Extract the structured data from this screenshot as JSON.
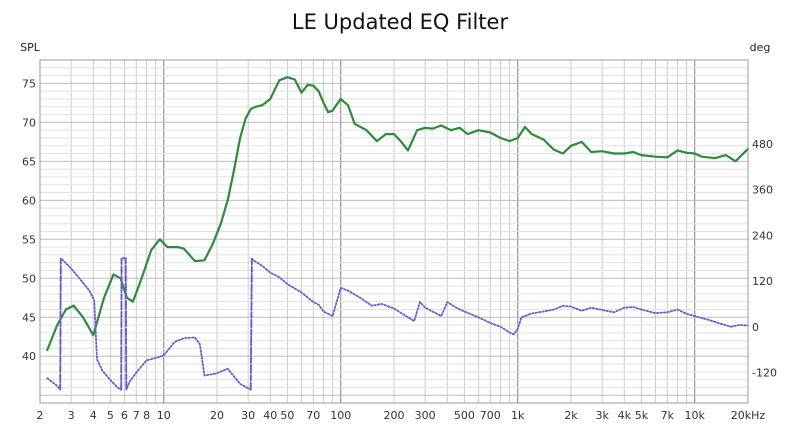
{
  "chart_data": {
    "type": "line",
    "title": "LE Updated EQ Filter",
    "y_left_label": "SPL",
    "y_right_label": "deg",
    "x_scale": "log",
    "xlim": [
      2,
      20000
    ],
    "ylim_left": [
      34,
      78
    ],
    "ylim_right": [
      -200,
      700
    ],
    "grid": true,
    "x_ticks": [
      {
        "v": 2,
        "label": "2"
      },
      {
        "v": 3,
        "label": "3"
      },
      {
        "v": 4,
        "label": "4"
      },
      {
        "v": 5,
        "label": "5"
      },
      {
        "v": 6,
        "label": "6"
      },
      {
        "v": 7,
        "label": "7"
      },
      {
        "v": 8,
        "label": "8"
      },
      {
        "v": 10,
        "label": "10"
      },
      {
        "v": 20,
        "label": "20"
      },
      {
        "v": 30,
        "label": "30"
      },
      {
        "v": 40,
        "label": "40"
      },
      {
        "v": 50,
        "label": "50"
      },
      {
        "v": 70,
        "label": "70"
      },
      {
        "v": 100,
        "label": "100"
      },
      {
        "v": 200,
        "label": "200"
      },
      {
        "v": 300,
        "label": "300"
      },
      {
        "v": 500,
        "label": "500"
      },
      {
        "v": 700,
        "label": "700"
      },
      {
        "v": 1000,
        "label": "1k"
      },
      {
        "v": 2000,
        "label": "2k"
      },
      {
        "v": 3000,
        "label": "3k"
      },
      {
        "v": 4000,
        "label": "4k"
      },
      {
        "v": 5000,
        "label": "5k"
      },
      {
        "v": 7000,
        "label": "7k"
      },
      {
        "v": 10000,
        "label": "10k"
      },
      {
        "v": 20000,
        "label": "20kHz"
      }
    ],
    "y_left_ticks": [
      40,
      45,
      50,
      55,
      60,
      65,
      70,
      75
    ],
    "y_right_ticks": [
      -120,
      0,
      120,
      240,
      360,
      480
    ],
    "series": [
      {
        "axis": "left",
        "color": "#2e8b3a",
        "style": "solid",
        "x": [
          2.2,
          2.5,
          2.8,
          3.1,
          3.5,
          4.0,
          4.6,
          5.2,
          5.7,
          6.2,
          6.7,
          7.5,
          8.5,
          9.5,
          10.5,
          12,
          13,
          15,
          17,
          19,
          21,
          23,
          25,
          27,
          29,
          31,
          33,
          36,
          40,
          45,
          50,
          55,
          60,
          65,
          70,
          75,
          80,
          85,
          90,
          95,
          100,
          110,
          120,
          140,
          160,
          180,
          200,
          220,
          240,
          270,
          300,
          330,
          370,
          420,
          470,
          520,
          600,
          700,
          800,
          900,
          1000,
          1100,
          1200,
          1400,
          1600,
          1800,
          2000,
          2300,
          2600,
          3000,
          3500,
          4000,
          4500,
          5000,
          6000,
          7000,
          8000,
          9000,
          10000,
          11000,
          13000,
          15000,
          17000,
          20000
        ],
        "y": [
          40.8,
          44.0,
          46.0,
          46.5,
          45.0,
          42.7,
          47.5,
          50.5,
          50.0,
          47.5,
          47.0,
          50.0,
          53.6,
          55.0,
          54.0,
          54.0,
          53.8,
          52.2,
          52.3,
          54.5,
          57.0,
          60.0,
          64.0,
          68.0,
          70.5,
          71.7,
          72.0,
          72.2,
          73.0,
          75.4,
          75.8,
          75.5,
          73.8,
          74.8,
          74.7,
          74.0,
          72.5,
          71.3,
          71.5,
          72.3,
          73.0,
          72.2,
          69.8,
          69.0,
          67.6,
          68.5,
          68.5,
          67.5,
          66.4,
          69.0,
          69.3,
          69.2,
          69.6,
          69.0,
          69.3,
          68.5,
          69.0,
          68.7,
          68.0,
          67.6,
          68.0,
          69.4,
          68.5,
          67.8,
          66.5,
          66.0,
          67.0,
          67.5,
          66.2,
          66.3,
          66.0,
          66.0,
          66.2,
          65.8,
          65.6,
          65.5,
          66.4,
          66.1,
          66.0,
          65.6,
          65.4,
          65.8,
          65.0,
          66.6
        ]
      },
      {
        "axis": "right",
        "color": "#6a5acd",
        "style": "dotted",
        "x": [
          2.2,
          2.5,
          2.6,
          2.62,
          2.9,
          3.3,
          3.8,
          4.05,
          4.2,
          4.5,
          5.0,
          5.5,
          5.75,
          5.78,
          6.0,
          6.1,
          6.15,
          6.4,
          7.0,
          8.0,
          9.0,
          10.0,
          11.5,
          13.0,
          15.0,
          16.0,
          17.0,
          20.0,
          23.0,
          27.0,
          31.0,
          31.5,
          32.0,
          36.0,
          40.0,
          45.0,
          50.0,
          60.0,
          70.0,
          75.0,
          80.0,
          90.0,
          100.0,
          110.0,
          130.0,
          150.0,
          170.0,
          200.0,
          230.0,
          260.0,
          280.0,
          300.0,
          330.0,
          370.0,
          400.0,
          450.0,
          500.0,
          600.0,
          700.0,
          800.0,
          900.0,
          950.0,
          1000.0,
          1050.0,
          1200.0,
          1400.0,
          1600.0,
          1800.0,
          2000.0,
          2300.0,
          2600.0,
          3000.0,
          3500.0,
          4000.0,
          4500.0,
          5000.0,
          6000.0,
          7000.0,
          8000.0,
          9000.0,
          10000.0,
          12000.0,
          14000.0,
          16000.0,
          18000.0,
          20000.0
        ],
        "y": [
          -135,
          -155,
          -165,
          180,
          160,
          130,
          95,
          70,
          -85,
          -115,
          -140,
          -160,
          -165,
          180,
          180,
          180,
          -165,
          -145,
          -120,
          -88,
          -82,
          -75,
          -40,
          -30,
          -28,
          -45,
          -128,
          -122,
          -110,
          -150,
          -165,
          180,
          175,
          160,
          142,
          130,
          112,
          90,
          65,
          58,
          40,
          28,
          102,
          95,
          75,
          55,
          60,
          48,
          30,
          15,
          65,
          50,
          40,
          28,
          65,
          50,
          40,
          25,
          10,
          0,
          -15,
          -20,
          -5,
          25,
          35,
          40,
          45,
          55,
          53,
          42,
          50,
          44,
          38,
          50,
          52,
          45,
          36,
          38,
          45,
          34,
          28,
          18,
          8,
          0,
          5,
          3
        ]
      },
      {
        "axis": "right",
        "color": "#6a5acd",
        "style": "dashed",
        "x": [
          2.6,
          2.62,
          5.75,
          5.78,
          6.0,
          6.1,
          6.15,
          31.0,
          31.5
        ],
        "y": [
          -165,
          180,
          -165,
          180,
          180,
          180,
          -165,
          -165,
          180
        ],
        "breaks": [
          2,
          4,
          7
        ]
      }
    ]
  }
}
